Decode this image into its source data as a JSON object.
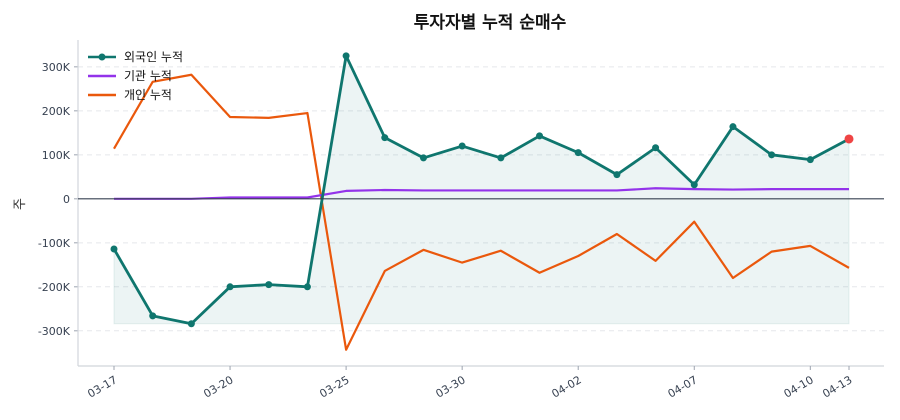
{
  "chart_data": {
    "type": "line",
    "title": "투자자별 누적 순매수",
    "xlabel": "",
    "ylabel": "주",
    "ylim": [
      -380000,
      361000
    ],
    "yticks": [
      -300000,
      -200000,
      -100000,
      0,
      100000,
      200000,
      300000
    ],
    "ytick_labels": [
      "-300K",
      "-200K",
      "-100K",
      "0",
      "100K",
      "200K",
      "300K"
    ],
    "categories": [
      "03-17",
      "03-18",
      "03-19",
      "03-20",
      "03-23",
      "03-24",
      "03-25",
      "03-26",
      "03-27",
      "03-30",
      "03-31",
      "04-01",
      "04-02",
      "04-03",
      "04-06",
      "04-07",
      "04-08",
      "04-09",
      "04-10",
      "04-13"
    ],
    "xtick_labels": [
      "03-17",
      "03-20",
      "03-25",
      "03-30",
      "04-02",
      "04-07",
      "04-10",
      "04-13"
    ],
    "grid": "horizontal dashed",
    "legend": "top-left",
    "series": [
      {
        "name": "외국인 누적",
        "color": "#0f766e",
        "markers": true,
        "values": [
          -114000,
          -266000,
          -284000,
          -200000,
          -195000,
          -200000,
          325000,
          139000,
          93000,
          120000,
          93000,
          143000,
          105000,
          55000,
          116000,
          32000,
          164000,
          100000,
          89000,
          136000
        ]
      },
      {
        "name": "기관 누적",
        "color": "#9333ea",
        "markers": false,
        "values": [
          0,
          0,
          0,
          3000,
          3000,
          3000,
          18000,
          20000,
          19000,
          19000,
          19000,
          19000,
          19000,
          19000,
          24000,
          22000,
          21000,
          22000,
          22000,
          22000
        ]
      },
      {
        "name": "개인 누적",
        "color": "#ea580c",
        "markers": false,
        "values": [
          114000,
          266000,
          282000,
          186000,
          184000,
          195000,
          -343000,
          -164000,
          -116000,
          -145000,
          -118000,
          -168000,
          -130000,
          -80000,
          -141000,
          -52000,
          -180000,
          -120000,
          -107000,
          -157000
        ]
      }
    ],
    "highlight_last_point_color": "#ef4444",
    "fill_color": "#0f766e"
  }
}
